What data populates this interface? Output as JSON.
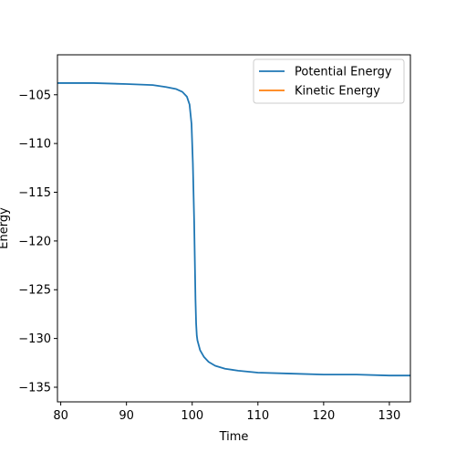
{
  "chart_data": {
    "type": "line",
    "title": "",
    "xlabel": "Time",
    "ylabel": "Energy",
    "xlim": [
      79.5,
      133.2
    ],
    "ylim": [
      -136.5,
      -100.9
    ],
    "xticks": [
      80,
      90,
      100,
      110,
      120,
      130
    ],
    "yticks": [
      -105,
      -110,
      -115,
      -120,
      -125,
      -130,
      -135
    ],
    "xtick_labels": [
      "80",
      "90",
      "100",
      "110",
      "120",
      "130"
    ],
    "ytick_labels": [
      "−105",
      "−110",
      "−115",
      "−120",
      "−125",
      "−130",
      "−135"
    ],
    "grid": false,
    "legend": {
      "placement": "top-right"
    },
    "series": [
      {
        "name": "Potential Energy",
        "color": "#1f77b4",
        "x": [
          79.5,
          85,
          90,
          94,
          96,
          97.5,
          98.5,
          99.2,
          99.6,
          99.9,
          100.1,
          100.3,
          100.4,
          100.5,
          100.6,
          100.7,
          100.8,
          101.2,
          101.8,
          102.5,
          103.5,
          105,
          107,
          110,
          115,
          120,
          125,
          130,
          133.2
        ],
        "y": [
          -103.8,
          -103.8,
          -103.9,
          -104.0,
          -104.2,
          -104.4,
          -104.7,
          -105.2,
          -106.0,
          -108.0,
          -112.0,
          -118.0,
          -122.0,
          -126.0,
          -128.5,
          -129.7,
          -130.2,
          -131.2,
          -131.9,
          -132.4,
          -132.8,
          -133.1,
          -133.3,
          -133.5,
          -133.6,
          -133.7,
          -133.7,
          -133.8,
          -133.8
        ]
      },
      {
        "name": "Kinetic Energy",
        "color": "#ff7f0e",
        "x": [],
        "y": []
      }
    ]
  }
}
